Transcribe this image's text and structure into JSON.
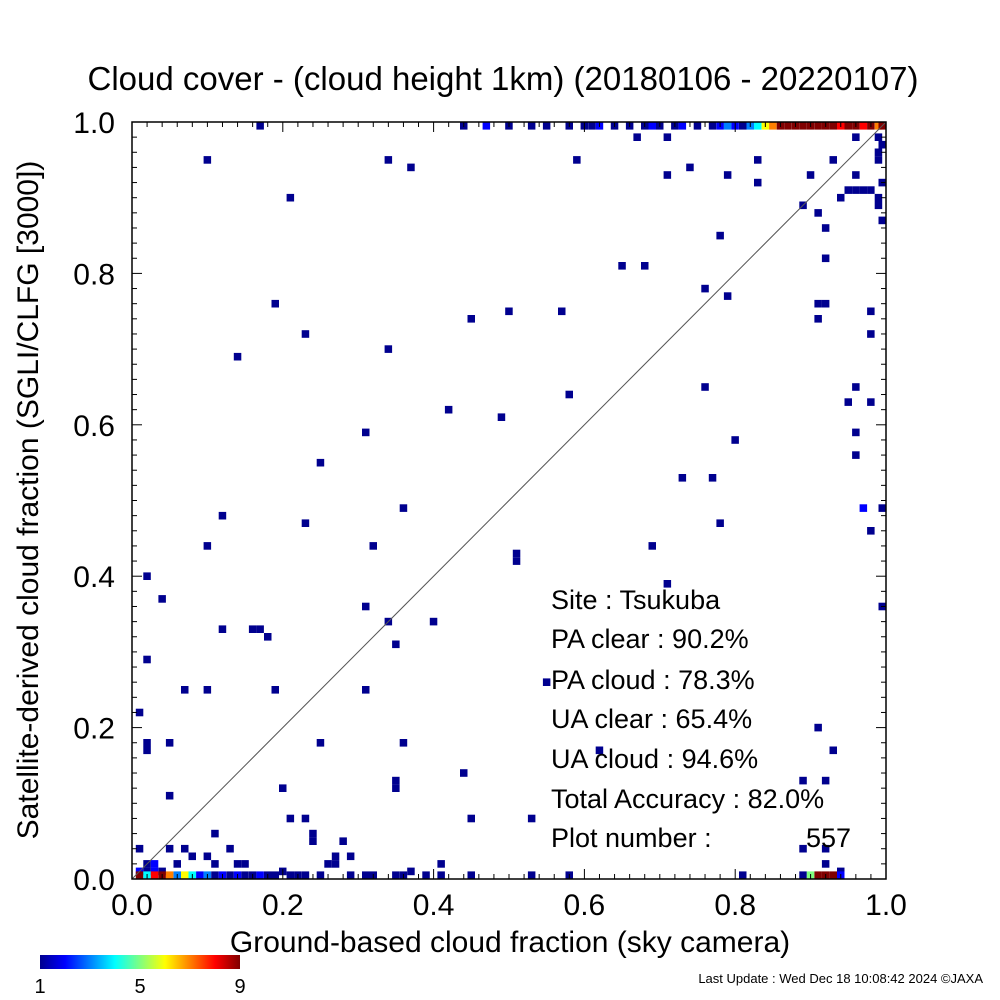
{
  "chart_data": {
    "type": "heatmap",
    "title": "Cloud cover - (cloud height 1km)  (20180106 - 20220107)",
    "xlabel": "Ground-based cloud fraction (sky camera)",
    "ylabel": "Satellite-derived cloud fraction (SGLI/CLFG [3000])",
    "xlim": [
      0.0,
      1.0
    ],
    "ylim": [
      0.0,
      1.0
    ],
    "x_ticks": [
      "0.0",
      "0.2",
      "0.4",
      "0.6",
      "0.8",
      "1.0"
    ],
    "y_ticks": [
      "0.0",
      "0.2",
      "0.4",
      "0.6",
      "0.8",
      "1.0"
    ],
    "diagonal_line": true,
    "bin_size": 0.01,
    "colorbar": {
      "min": 1,
      "max": 9,
      "ticks": [
        "1",
        "5",
        "9"
      ]
    },
    "cells": [
      [
        0.17,
        1.0,
        1
      ],
      [
        0.44,
        1.0,
        1
      ],
      [
        0.47,
        1.0,
        2
      ],
      [
        0.5,
        1.0,
        1
      ],
      [
        0.53,
        1.0,
        1
      ],
      [
        0.55,
        1.0,
        1
      ],
      [
        0.58,
        1.0,
        1
      ],
      [
        0.6,
        1.0,
        1
      ],
      [
        0.61,
        1.0,
        1
      ],
      [
        0.62,
        1.0,
        2
      ],
      [
        0.64,
        1.0,
        1
      ],
      [
        0.66,
        1.0,
        1
      ],
      [
        0.68,
        1.0,
        1
      ],
      [
        0.69,
        1.0,
        2
      ],
      [
        0.7,
        1.0,
        1
      ],
      [
        0.72,
        1.0,
        1
      ],
      [
        0.73,
        1.0,
        2
      ],
      [
        0.75,
        1.0,
        1
      ],
      [
        0.77,
        1.0,
        1
      ],
      [
        0.78,
        1.0,
        2
      ],
      [
        0.79,
        1.0,
        3
      ],
      [
        0.8,
        1.0,
        2
      ],
      [
        0.81,
        1.0,
        1
      ],
      [
        0.82,
        1.0,
        3
      ],
      [
        0.83,
        1.0,
        4
      ],
      [
        0.84,
        1.0,
        6
      ],
      [
        0.85,
        1.0,
        7
      ],
      [
        0.86,
        1.0,
        9
      ],
      [
        0.87,
        1.0,
        9
      ],
      [
        0.88,
        1.0,
        9
      ],
      [
        0.89,
        1.0,
        9
      ],
      [
        0.9,
        1.0,
        9
      ],
      [
        0.91,
        1.0,
        9
      ],
      [
        0.92,
        1.0,
        9
      ],
      [
        0.93,
        1.0,
        9
      ],
      [
        0.94,
        1.0,
        8
      ],
      [
        0.95,
        1.0,
        9
      ],
      [
        0.96,
        1.0,
        9
      ],
      [
        0.97,
        1.0,
        8
      ],
      [
        0.98,
        1.0,
        9
      ],
      [
        0.99,
        1.0,
        7
      ],
      [
        1.0,
        1.0,
        9
      ],
      [
        0.1,
        0.95,
        1
      ],
      [
        0.34,
        0.95,
        1
      ],
      [
        0.37,
        0.94,
        1
      ],
      [
        0.59,
        0.95,
        1
      ],
      [
        0.67,
        0.98,
        1
      ],
      [
        0.71,
        0.98,
        1
      ],
      [
        0.83,
        0.95,
        1
      ],
      [
        0.93,
        0.95,
        1
      ],
      [
        0.96,
        0.98,
        1
      ],
      [
        0.99,
        0.98,
        1
      ],
      [
        1.0,
        0.97,
        1
      ],
      [
        0.99,
        0.96,
        1
      ],
      [
        0.99,
        0.95,
        1
      ],
      [
        0.21,
        0.9,
        1
      ],
      [
        0.71,
        0.93,
        1
      ],
      [
        0.74,
        0.94,
        1
      ],
      [
        0.79,
        0.93,
        1
      ],
      [
        0.83,
        0.92,
        1
      ],
      [
        0.9,
        0.93,
        1
      ],
      [
        0.96,
        0.93,
        1
      ],
      [
        0.89,
        0.89,
        1
      ],
      [
        0.91,
        0.88,
        1
      ],
      [
        0.94,
        0.9,
        1
      ],
      [
        0.95,
        0.91,
        1
      ],
      [
        0.96,
        0.91,
        1
      ],
      [
        0.97,
        0.91,
        1
      ],
      [
        0.98,
        0.91,
        1
      ],
      [
        0.99,
        0.9,
        1
      ],
      [
        1.0,
        0.92,
        1
      ],
      [
        0.99,
        0.89,
        1
      ],
      [
        0.92,
        0.86,
        1
      ],
      [
        1.0,
        0.87,
        1
      ],
      [
        0.92,
        0.82,
        1
      ],
      [
        0.78,
        0.85,
        1
      ],
      [
        0.65,
        0.81,
        1
      ],
      [
        0.68,
        0.81,
        1
      ],
      [
        0.76,
        0.78,
        1
      ],
      [
        0.79,
        0.77,
        1
      ],
      [
        0.19,
        0.76,
        1
      ],
      [
        0.23,
        0.72,
        1
      ],
      [
        0.45,
        0.74,
        1
      ],
      [
        0.5,
        0.75,
        1
      ],
      [
        0.57,
        0.75,
        1
      ],
      [
        0.91,
        0.76,
        1
      ],
      [
        0.92,
        0.76,
        1
      ],
      [
        0.91,
        0.74,
        1
      ],
      [
        0.98,
        0.75,
        1
      ],
      [
        0.98,
        0.72,
        1
      ],
      [
        0.14,
        0.69,
        1
      ],
      [
        0.34,
        0.7,
        1
      ],
      [
        0.76,
        0.65,
        1
      ],
      [
        0.58,
        0.64,
        1
      ],
      [
        0.96,
        0.65,
        1
      ],
      [
        0.95,
        0.63,
        1
      ],
      [
        0.98,
        0.63,
        1
      ],
      [
        0.42,
        0.62,
        1
      ],
      [
        0.49,
        0.61,
        1
      ],
      [
        0.31,
        0.59,
        1
      ],
      [
        0.96,
        0.59,
        1
      ],
      [
        0.8,
        0.58,
        1
      ],
      [
        0.96,
        0.56,
        1
      ],
      [
        0.25,
        0.55,
        1
      ],
      [
        0.73,
        0.53,
        1
      ],
      [
        0.77,
        0.53,
        1
      ],
      [
        0.36,
        0.49,
        1
      ],
      [
        0.97,
        0.49,
        2
      ],
      [
        1.0,
        0.49,
        1
      ],
      [
        0.12,
        0.48,
        1
      ],
      [
        0.23,
        0.47,
        1
      ],
      [
        0.78,
        0.47,
        1
      ],
      [
        0.98,
        0.46,
        1
      ],
      [
        0.32,
        0.44,
        1
      ],
      [
        0.1,
        0.44,
        1
      ],
      [
        0.51,
        0.43,
        1
      ],
      [
        0.51,
        0.42,
        1
      ],
      [
        0.69,
        0.44,
        1
      ],
      [
        0.02,
        0.4,
        1
      ],
      [
        0.71,
        0.39,
        1
      ],
      [
        0.04,
        0.37,
        1
      ],
      [
        1.0,
        0.36,
        1
      ],
      [
        0.31,
        0.36,
        1
      ],
      [
        0.34,
        0.34,
        1
      ],
      [
        0.4,
        0.34,
        1
      ],
      [
        0.12,
        0.33,
        1
      ],
      [
        0.16,
        0.33,
        1
      ],
      [
        0.17,
        0.33,
        1
      ],
      [
        0.18,
        0.32,
        1
      ],
      [
        0.35,
        0.31,
        1
      ],
      [
        0.02,
        0.29,
        1
      ],
      [
        0.55,
        0.26,
        1
      ],
      [
        0.07,
        0.25,
        1
      ],
      [
        0.1,
        0.25,
        1
      ],
      [
        0.19,
        0.25,
        1
      ],
      [
        0.31,
        0.25,
        1
      ],
      [
        0.01,
        0.22,
        1
      ],
      [
        0.91,
        0.2,
        1
      ],
      [
        0.05,
        0.18,
        1
      ],
      [
        0.02,
        0.18,
        1
      ],
      [
        0.02,
        0.17,
        1
      ],
      [
        0.25,
        0.18,
        1
      ],
      [
        0.36,
        0.18,
        1
      ],
      [
        0.93,
        0.17,
        1
      ],
      [
        0.62,
        0.17,
        1
      ],
      [
        0.44,
        0.14,
        1
      ],
      [
        0.35,
        0.13,
        1
      ],
      [
        0.35,
        0.12,
        1
      ],
      [
        0.2,
        0.12,
        1
      ],
      [
        0.89,
        0.13,
        1
      ],
      [
        0.92,
        0.13,
        1
      ],
      [
        0.05,
        0.11,
        1
      ],
      [
        0.21,
        0.08,
        1
      ],
      [
        0.23,
        0.08,
        1
      ],
      [
        0.45,
        0.08,
        1
      ],
      [
        0.53,
        0.08,
        1
      ],
      [
        0.24,
        0.06,
        1
      ],
      [
        0.24,
        0.05,
        1
      ],
      [
        0.28,
        0.05,
        1
      ],
      [
        0.11,
        0.06,
        1
      ],
      [
        0.13,
        0.04,
        1
      ],
      [
        0.01,
        0.04,
        1
      ],
      [
        0.05,
        0.04,
        1
      ],
      [
        0.07,
        0.04,
        1
      ],
      [
        0.27,
        0.03,
        1
      ],
      [
        0.29,
        0.03,
        1
      ],
      [
        0.1,
        0.03,
        1
      ],
      [
        0.89,
        0.04,
        1
      ],
      [
        0.92,
        0.04,
        1
      ],
      [
        0.02,
        0.02,
        1
      ],
      [
        0.03,
        0.02,
        2
      ],
      [
        0.04,
        0.01,
        1
      ],
      [
        0.06,
        0.02,
        1
      ],
      [
        0.08,
        0.03,
        1
      ],
      [
        0.11,
        0.02,
        1
      ],
      [
        0.14,
        0.02,
        1
      ],
      [
        0.15,
        0.02,
        1
      ],
      [
        0.2,
        0.01,
        1
      ],
      [
        0.26,
        0.02,
        1
      ],
      [
        0.27,
        0.02,
        1
      ],
      [
        0.37,
        0.01,
        1
      ],
      [
        0.41,
        0.02,
        1
      ],
      [
        0.92,
        0.02,
        1
      ],
      [
        0.94,
        0.01,
        1
      ],
      [
        0.01,
        0.01,
        2
      ],
      [
        0.02,
        0.01,
        1
      ],
      [
        0.03,
        0.01,
        2
      ],
      [
        0.01,
        0.0,
        9
      ],
      [
        0.02,
        0.0,
        4
      ],
      [
        0.03,
        0.0,
        8
      ],
      [
        0.04,
        0.0,
        9
      ],
      [
        0.05,
        0.0,
        7
      ],
      [
        0.06,
        0.0,
        3
      ],
      [
        0.07,
        0.0,
        6
      ],
      [
        0.08,
        0.0,
        4
      ],
      [
        0.09,
        0.0,
        2
      ],
      [
        0.1,
        0.0,
        3
      ],
      [
        0.11,
        0.0,
        1
      ],
      [
        0.12,
        0.0,
        2
      ],
      [
        0.13,
        0.0,
        1
      ],
      [
        0.14,
        0.0,
        2
      ],
      [
        0.15,
        0.0,
        1
      ],
      [
        0.16,
        0.0,
        1
      ],
      [
        0.17,
        0.0,
        2
      ],
      [
        0.18,
        0.0,
        1
      ],
      [
        0.19,
        0.0,
        1
      ],
      [
        0.21,
        0.0,
        1
      ],
      [
        0.22,
        0.0,
        1
      ],
      [
        0.23,
        0.0,
        1
      ],
      [
        0.25,
        0.0,
        1
      ],
      [
        0.29,
        0.0,
        1
      ],
      [
        0.31,
        0.0,
        1
      ],
      [
        0.32,
        0.0,
        1
      ],
      [
        0.35,
        0.0,
        1
      ],
      [
        0.36,
        0.0,
        1
      ],
      [
        0.39,
        0.0,
        1
      ],
      [
        0.41,
        0.0,
        1
      ],
      [
        0.45,
        0.0,
        1
      ],
      [
        0.53,
        0.0,
        1
      ],
      [
        0.58,
        0.0,
        1
      ],
      [
        0.81,
        0.0,
        1
      ],
      [
        0.89,
        0.0,
        1
      ],
      [
        0.9,
        0.0,
        5
      ],
      [
        0.91,
        0.0,
        9
      ],
      [
        0.92,
        0.0,
        9
      ],
      [
        0.93,
        0.0,
        9
      ],
      [
        0.94,
        0.0,
        2
      ]
    ]
  },
  "stats": {
    "site": "Site : Tsukuba",
    "pa_clear": "PA clear :  90.2%",
    "pa_cloud": "PA cloud :  78.3%",
    "ua_clear": "UA clear :  65.4%",
    "ua_cloud": "UA cloud :  94.6%",
    "total_accuracy": "Total Accuracy :  82.0%",
    "plot_number_label": "Plot number :",
    "plot_number_value": "557"
  },
  "footer": "Last Update : Wed Dec 18 10:08:42 2024  ©JAXA"
}
